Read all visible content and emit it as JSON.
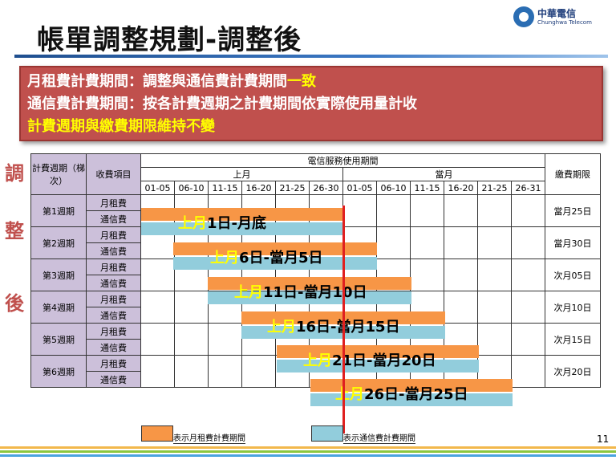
{
  "logo": {
    "cn": "中華電信",
    "en": "Chunghwa Telecom"
  },
  "title": "帳單調整規劃-調整後",
  "callout": {
    "line1_a": "月租費計費期間：調整與通信費計費期間",
    "line1_b": "一致",
    "line2": "通信費計費期間：按各計費週期之計費期間依實際使用量計收",
    "line3": "計費週期與繳費期限維持不變"
  },
  "side_label": [
    "調",
    "整",
    "後"
  ],
  "table": {
    "h_cycle": "計費週期（梯次）",
    "h_item": "收費項目",
    "h_period": "電信服務使用期間",
    "h_due": "繳費期限",
    "h_prev_month": "上月",
    "h_this_month": "當月",
    "day_ranges": [
      "01-05",
      "06-10",
      "11-15",
      "16-20",
      "21-25",
      "26-30",
      "01-05",
      "06-10",
      "11-15",
      "16-20",
      "21-25",
      "26-31"
    ],
    "fee_monthly": "月租費",
    "fee_comm": "通信費",
    "rows": [
      {
        "cycle": "第1週期",
        "label_a": "上月",
        "label_b": "1日-月底",
        "due": "當月25日"
      },
      {
        "cycle": "第2週期",
        "label_a": "上月",
        "label_b": "6日-當月5日",
        "due": "當月30日"
      },
      {
        "cycle": "第3週期",
        "label_a": "上月",
        "label_b": "11日-當月10日",
        "due": "次月05日"
      },
      {
        "cycle": "第4週期",
        "label_a": "上月",
        "label_b": "16日-當月15日",
        "due": "次月10日"
      },
      {
        "cycle": "第5週期",
        "label_a": "上月",
        "label_b": "21日-當月20日",
        "due": "次月15日"
      },
      {
        "cycle": "第6週期",
        "label_a": "上月",
        "label_b": "26日-當月25日",
        "due": "次月20日"
      }
    ]
  },
  "legend": {
    "monthly": "表示月租費計費期間",
    "comm": "表示通信費計費期間"
  },
  "page_number": "11",
  "colors": {
    "monthly": "#f79646",
    "comm": "#92cddc",
    "callout": "#c0504d",
    "highlight": "#ffff00",
    "cutoff_line": "#e02020"
  }
}
